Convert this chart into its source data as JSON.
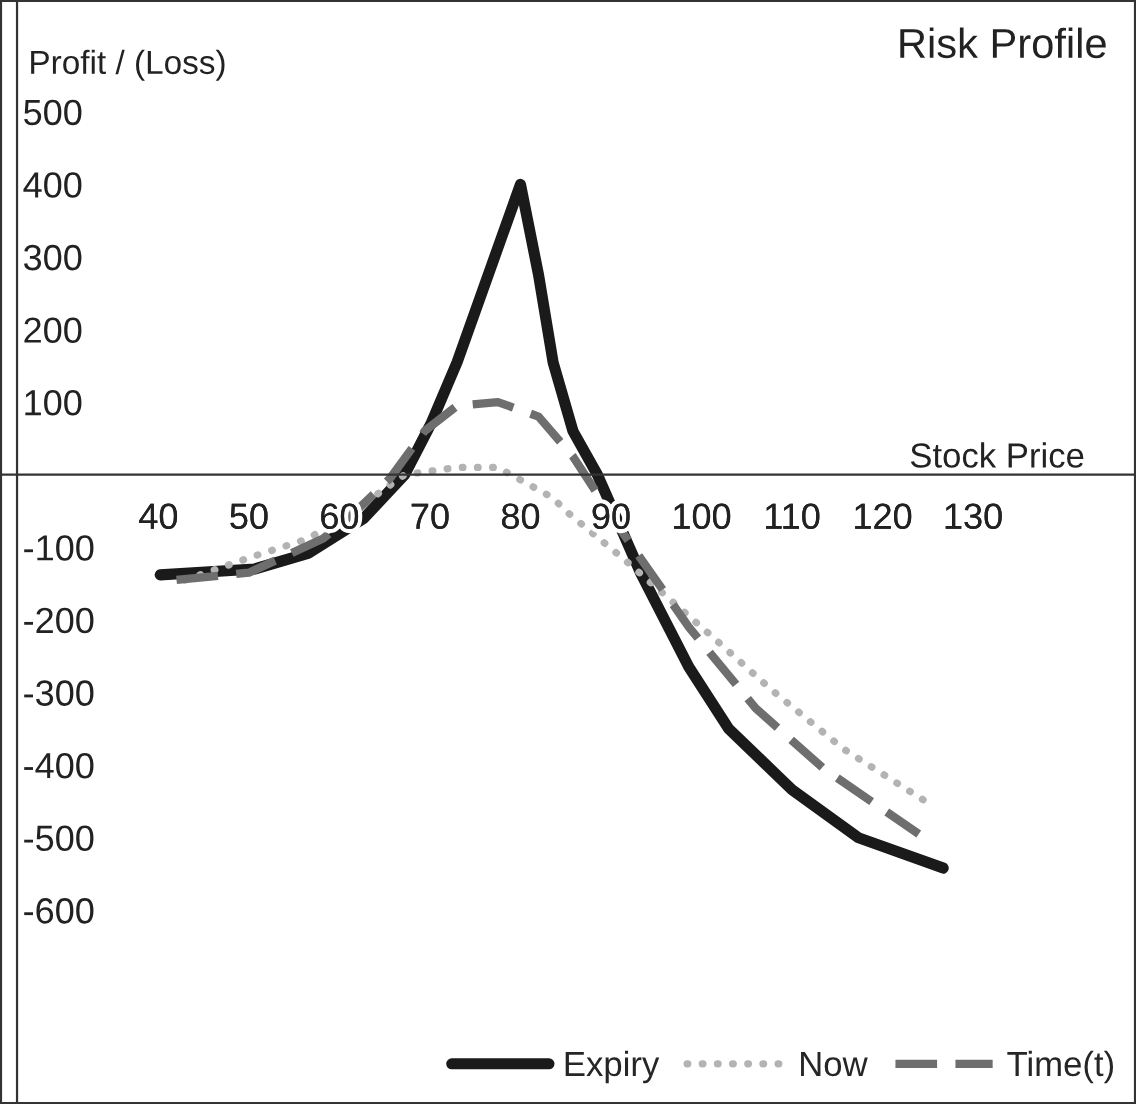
{
  "chart_data": {
    "type": "line",
    "title": "Risk Profile",
    "ylabel": "Profit / (Loss)",
    "xlabel": "Stock Price",
    "xlim": [
      22.5,
      148
    ],
    "ylim": [
      -867,
      654
    ],
    "xticks": [
      40,
      50,
      60,
      70,
      80,
      90,
      100,
      110,
      120,
      130
    ],
    "yticks": [
      -600,
      -500,
      -400,
      -300,
      -200,
      -100,
      100,
      200,
      300,
      400,
      500
    ],
    "grid": false,
    "legend": "bottom right",
    "series": [
      {
        "name": "Expiry",
        "color": "#1a1a1a",
        "line_style": "solid",
        "x": [
          40.2,
          50.6,
          56.6,
          62.7,
          67.2,
          70.1,
          73,
          80,
          82,
          83.6,
          85.8,
          88.5,
          93.3,
          98.6,
          103,
          110,
          117.3,
          126.7
        ],
        "values": [
          -138,
          -130,
          -108,
          -60,
          0,
          70,
          155,
          400,
          275,
          155,
          60,
          0,
          -136,
          -265,
          -350,
          -434,
          -500,
          -542
        ]
      },
      {
        "name": "Now",
        "color": "#b3b3b3",
        "line_style": "dotted",
        "x": [
          43,
          50.6,
          56.6,
          62.7,
          67.2,
          73,
          77.5,
          83.6,
          85,
          91.3,
          100.9,
          107.6,
          115.7,
          125
        ],
        "values": [
          -145,
          -112,
          -88,
          -40,
          0,
          10,
          10,
          -32,
          -50,
          -115,
          -220,
          -295,
          -378,
          -452
        ]
      },
      {
        "name": "Time(t)",
        "color": "#6e6e6e",
        "line_style": "dashed",
        "x": [
          42,
          50,
          58.2,
          61,
          65.6,
          69.4,
          73,
          77.5,
          82,
          85.8,
          91.3,
          98.6,
          106,
          113.5,
          124
        ],
        "values": [
          -145,
          -135,
          -88,
          -60,
          -5,
          60,
          95,
          100,
          80,
          25,
          -80,
          -210,
          -322,
          -405,
          -495
        ]
      }
    ]
  }
}
